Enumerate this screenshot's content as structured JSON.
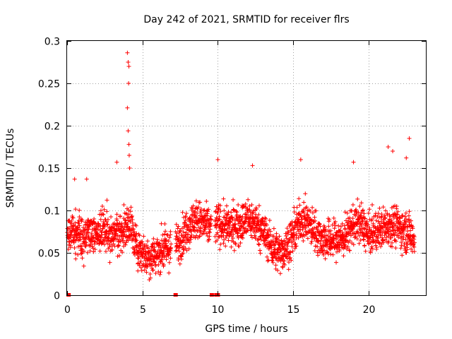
{
  "chart_data": {
    "type": "scatter",
    "title": "Day 242 of 2021, SRMTID for receiver flrs",
    "xlabel": "GPS time / hours",
    "ylabel": "SRMTID / TECUs",
    "xlim": [
      0,
      23.8
    ],
    "ylim": [
      0,
      0.3
    ],
    "xticks": [
      0,
      5,
      10,
      15,
      20
    ],
    "xtick_labels": [
      "0",
      "5",
      "10",
      "15",
      "20"
    ],
    "yticks": [
      0,
      0.05,
      0.1,
      0.15,
      0.2,
      0.25,
      0.3
    ],
    "ytick_labels": [
      "0",
      "0.05",
      "0.1",
      "0.15",
      "0.2",
      "0.25",
      "0.3"
    ],
    "grid": true,
    "marker": "+",
    "color": "#ff0000",
    "trend": [
      [
        0.0,
        0.07
      ],
      [
        0.5,
        0.075
      ],
      [
        1.0,
        0.065
      ],
      [
        1.5,
        0.075
      ],
      [
        2.0,
        0.07
      ],
      [
        2.5,
        0.08
      ],
      [
        3.0,
        0.07
      ],
      [
        3.5,
        0.075
      ],
      [
        4.0,
        0.08
      ],
      [
        4.2,
        0.085
      ],
      [
        4.5,
        0.06
      ],
      [
        5.0,
        0.05
      ],
      [
        5.5,
        0.045
      ],
      [
        6.0,
        0.05
      ],
      [
        6.5,
        0.055
      ],
      [
        7.0,
        0.055
      ],
      [
        7.5,
        0.065
      ],
      [
        8.0,
        0.08
      ],
      [
        8.5,
        0.09
      ],
      [
        9.0,
        0.085
      ],
      [
        9.5,
        0.08
      ],
      [
        10.0,
        0.085
      ],
      [
        10.5,
        0.08
      ],
      [
        11.0,
        0.08
      ],
      [
        11.5,
        0.085
      ],
      [
        12.0,
        0.09
      ],
      [
        12.5,
        0.085
      ],
      [
        13.0,
        0.075
      ],
      [
        13.5,
        0.06
      ],
      [
        14.0,
        0.05
      ],
      [
        14.5,
        0.055
      ],
      [
        15.0,
        0.07
      ],
      [
        15.5,
        0.09
      ],
      [
        16.0,
        0.085
      ],
      [
        16.5,
        0.075
      ],
      [
        17.0,
        0.065
      ],
      [
        17.5,
        0.065
      ],
      [
        18.0,
        0.065
      ],
      [
        18.5,
        0.07
      ],
      [
        19.0,
        0.085
      ],
      [
        19.5,
        0.085
      ],
      [
        20.0,
        0.07
      ],
      [
        20.5,
        0.075
      ],
      [
        21.0,
        0.08
      ],
      [
        21.5,
        0.085
      ],
      [
        22.0,
        0.08
      ],
      [
        22.5,
        0.075
      ],
      [
        23.0,
        0.07
      ]
    ],
    "spikes": [
      [
        4.0,
        0.286
      ],
      [
        4.05,
        0.275
      ],
      [
        4.1,
        0.27
      ],
      [
        4.08,
        0.25
      ],
      [
        4.0,
        0.221
      ],
      [
        4.05,
        0.194
      ],
      [
        4.1,
        0.178
      ],
      [
        4.12,
        0.165
      ],
      [
        4.15,
        0.15
      ],
      [
        3.3,
        0.157
      ],
      [
        10.0,
        0.16
      ],
      [
        12.3,
        0.153
      ],
      [
        15.5,
        0.16
      ],
      [
        19.0,
        0.157
      ],
      [
        21.3,
        0.175
      ],
      [
        22.7,
        0.185
      ],
      [
        22.5,
        0.162
      ],
      [
        21.6,
        0.17
      ],
      [
        1.3,
        0.137
      ],
      [
        0.5,
        0.137
      ]
    ],
    "zero_points": [
      0.1,
      7.2,
      9.6,
      9.9,
      10.0
    ]
  }
}
